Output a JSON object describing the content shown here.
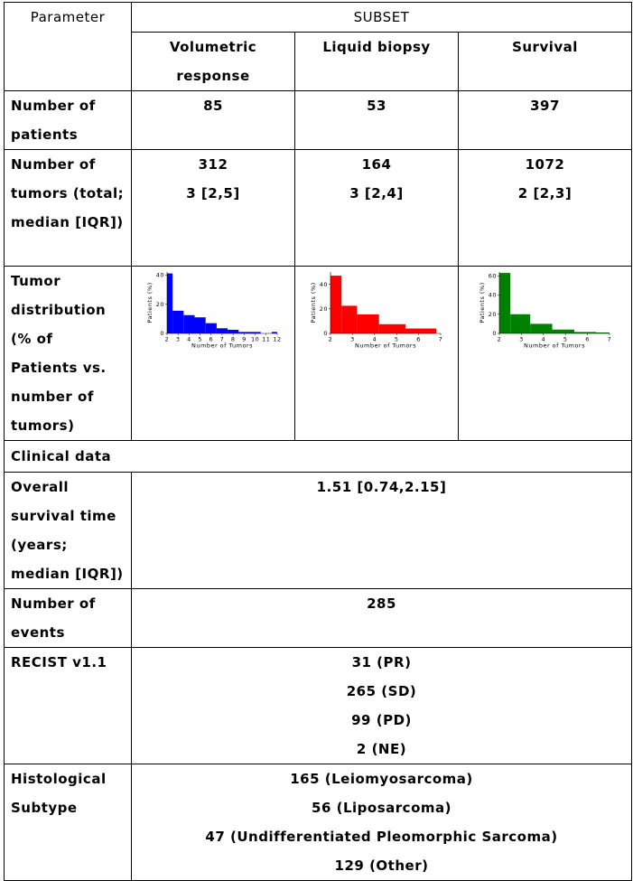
{
  "header": {
    "parameter": "Parameter",
    "subset": "SUBSET",
    "columns": [
      "Volumetric response",
      "Liquid biopsy",
      "Survival"
    ]
  },
  "rows": {
    "patients": {
      "label": "Number of patients",
      "values": [
        "85",
        "53",
        "397"
      ]
    },
    "tumors": {
      "label": "Number of tumors (total; median [IQR])",
      "totals": [
        "312",
        "164",
        "1072"
      ],
      "medians": [
        "3 [2,5]",
        "3 [2,4]",
        "2 [2,3]"
      ]
    },
    "distribution": {
      "label": "Tumor distribution (% of Patients vs. number of tumors)"
    },
    "clinical": {
      "label": "Clinical data"
    },
    "overall_survival": {
      "label": "Overall survival time (years; median [IQR])",
      "value": "1.51 [0.74,2.15]"
    },
    "events": {
      "label": "Number of events",
      "value": "285"
    },
    "recist": {
      "label": "RECIST v1.1",
      "values": [
        "31 (PR)",
        "265 (SD)",
        "99 (PD)",
        "2 (NE)"
      ]
    },
    "histology": {
      "label": "Histological Subtype",
      "values": [
        "165 (Leiomyosarcoma)",
        "56 (Liposarcoma)",
        "47 (Undifferentiated Pleomorphic Sarcoma)",
        "129 (Other)"
      ]
    }
  },
  "chart_data": [
    {
      "type": "bar",
      "color": "#0000ff",
      "xlabel": "Number of Tumors",
      "ylabel": "Patients (%)",
      "xlim": [
        2,
        12
      ],
      "ylim": [
        0,
        42
      ],
      "xticks": [
        2,
        3,
        4,
        5,
        6,
        7,
        8,
        9,
        10,
        11,
        12
      ],
      "yticks": [
        0,
        20,
        40
      ],
      "bins": [
        {
          "x0": 2.0,
          "x1": 2.5,
          "value": 41
        },
        {
          "x0": 2.5,
          "x1": 3.5,
          "value": 15.5
        },
        {
          "x0": 3.5,
          "x1": 4.5,
          "value": 12.5
        },
        {
          "x0": 4.5,
          "x1": 5.5,
          "value": 11
        },
        {
          "x0": 5.5,
          "x1": 6.5,
          "value": 7
        },
        {
          "x0": 6.5,
          "x1": 7.5,
          "value": 3.5
        },
        {
          "x0": 7.5,
          "x1": 8.5,
          "value": 2.5
        },
        {
          "x0": 8.5,
          "x1": 9.5,
          "value": 1
        },
        {
          "x0": 9.5,
          "x1": 10.5,
          "value": 1
        },
        {
          "x0": 11.5,
          "x1": 12.0,
          "value": 1
        }
      ]
    },
    {
      "type": "bar",
      "color": "#ff0000",
      "xlabel": "Number of Tumors",
      "ylabel": "Patients (%)",
      "xlim": [
        2,
        7
      ],
      "ylim": [
        0,
        50
      ],
      "xticks": [
        2,
        3,
        4,
        5,
        6,
        7
      ],
      "yticks": [
        0,
        20,
        40
      ],
      "bins": [
        {
          "x0": 2.0,
          "x1": 2.5,
          "value": 47
        },
        {
          "x0": 2.5,
          "x1": 3.2,
          "value": 22.5
        },
        {
          "x0": 3.2,
          "x1": 4.2,
          "value": 15.5
        },
        {
          "x0": 4.2,
          "x1": 5.4,
          "value": 7.5
        },
        {
          "x0": 5.4,
          "x1": 6.8,
          "value": 4
        }
      ]
    },
    {
      "type": "bar",
      "color": "#008000",
      "xlabel": "Number of Tumors",
      "ylabel": "Patients (%)",
      "xlim": [
        2,
        7
      ],
      "ylim": [
        0,
        64
      ],
      "xticks": [
        2,
        3,
        4,
        5,
        6,
        7
      ],
      "yticks": [
        0,
        20,
        40,
        60
      ],
      "bins": [
        {
          "x0": 2.0,
          "x1": 2.5,
          "value": 63
        },
        {
          "x0": 2.5,
          "x1": 3.4,
          "value": 20
        },
        {
          "x0": 3.4,
          "x1": 4.4,
          "value": 10
        },
        {
          "x0": 4.4,
          "x1": 5.4,
          "value": 4
        },
        {
          "x0": 5.4,
          "x1": 6.4,
          "value": 1.5
        },
        {
          "x0": 6.4,
          "x1": 7.0,
          "value": 1
        }
      ]
    }
  ]
}
